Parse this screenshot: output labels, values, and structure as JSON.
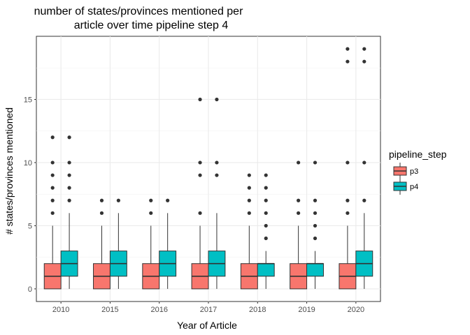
{
  "chart_data": {
    "type": "boxplot",
    "title": [
      "number of states/provinces mentioned per",
      "article over time pipeline step 4"
    ],
    "xlabel": "Year of Article",
    "ylabel": "# states/provinces mentioned",
    "categories": [
      "2010",
      "2015",
      "2016",
      "2017",
      "2018",
      "2019",
      "2020"
    ],
    "ylim": [
      -1,
      20
    ],
    "yticks": [
      0,
      5,
      10,
      15
    ],
    "grid": true,
    "legend": {
      "title": "pipeline_step",
      "position": "right",
      "entries": [
        {
          "name": "p3",
          "color": "#F8766D"
        },
        {
          "name": "p4",
          "color": "#00BFC4"
        }
      ]
    },
    "series": [
      {
        "name": "p3",
        "color": "#F8766D",
        "boxes": [
          {
            "category": "2010",
            "min": 0,
            "q1": 0,
            "median": 1,
            "q3": 2,
            "max": 5,
            "outliers": [
              6,
              7,
              8,
              9,
              10,
              12
            ]
          },
          {
            "category": "2015",
            "min": 0,
            "q1": 0,
            "median": 1,
            "q3": 2,
            "max": 5,
            "outliers": [
              6,
              7
            ]
          },
          {
            "category": "2016",
            "min": 0,
            "q1": 0,
            "median": 1,
            "q3": 2,
            "max": 5,
            "outliers": [
              6,
              7
            ]
          },
          {
            "category": "2017",
            "min": 0,
            "q1": 0,
            "median": 1,
            "q3": 2,
            "max": 5,
            "outliers": [
              6,
              9,
              10,
              15
            ]
          },
          {
            "category": "2018",
            "min": 0,
            "q1": 0,
            "median": 1,
            "q3": 2,
            "max": 5,
            "outliers": [
              6,
              7,
              8,
              9
            ]
          },
          {
            "category": "2019",
            "min": 0,
            "q1": 0,
            "median": 1,
            "q3": 2,
            "max": 5,
            "outliers": [
              6,
              7,
              10
            ]
          },
          {
            "category": "2020",
            "min": 0,
            "q1": 0,
            "median": 1,
            "q3": 2,
            "max": 5,
            "outliers": [
              6,
              7,
              10,
              18,
              19
            ]
          }
        ]
      },
      {
        "name": "p4",
        "color": "#00BFC4",
        "boxes": [
          {
            "category": "2010",
            "min": 0,
            "q1": 1,
            "median": 2,
            "q3": 3,
            "max": 6,
            "outliers": [
              7,
              8,
              9,
              10,
              12
            ]
          },
          {
            "category": "2015",
            "min": 0,
            "q1": 1,
            "median": 2,
            "q3": 3,
            "max": 6,
            "outliers": [
              7
            ]
          },
          {
            "category": "2016",
            "min": 0,
            "q1": 1,
            "median": 2,
            "q3": 3,
            "max": 6,
            "outliers": [
              7
            ]
          },
          {
            "category": "2017",
            "min": 0,
            "q1": 1,
            "median": 2,
            "q3": 3,
            "max": 6,
            "outliers": [
              9,
              10,
              15
            ]
          },
          {
            "category": "2018",
            "min": 0,
            "q1": 1,
            "median": 2,
            "q3": 2,
            "max": 3,
            "outliers": [
              4,
              5,
              6,
              7,
              8,
              9
            ]
          },
          {
            "category": "2019",
            "min": 0,
            "q1": 1,
            "median": 2,
            "q3": 2,
            "max": 3,
            "outliers": [
              4,
              5,
              6,
              7,
              10
            ]
          },
          {
            "category": "2020",
            "min": 0,
            "q1": 1,
            "median": 2,
            "q3": 3,
            "max": 6,
            "outliers": [
              7,
              10,
              18,
              19
            ]
          }
        ]
      }
    ]
  }
}
